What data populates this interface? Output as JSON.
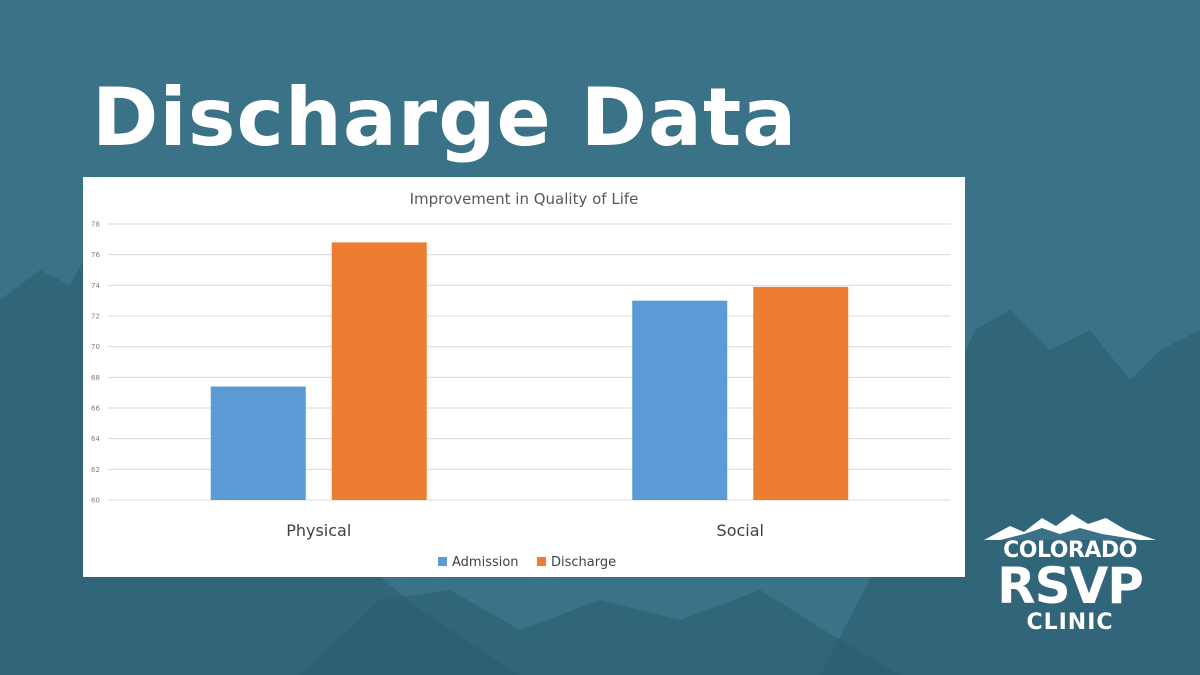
{
  "slide": {
    "title": "Discharge Data"
  },
  "logo": {
    "line1": "COLORADO",
    "line2": "RSVP",
    "line3": "CLINIC"
  },
  "colors": {
    "background": "#3a7388",
    "admission": "#5b9bd5",
    "discharge": "#ed7d31"
  },
  "chart_data": {
    "type": "bar",
    "title": "Improvement  in Quality of Life",
    "categories": [
      "Physical",
      "Social"
    ],
    "series": [
      {
        "name": "Admission",
        "values": [
          67.4,
          73.0
        ]
      },
      {
        "name": "Discharge",
        "values": [
          76.8,
          73.9
        ]
      }
    ],
    "ylim": [
      60,
      78
    ],
    "yticks": [
      60,
      62,
      64,
      66,
      68,
      70,
      72,
      74,
      76,
      78
    ],
    "grid": true,
    "legend": "bottom"
  }
}
